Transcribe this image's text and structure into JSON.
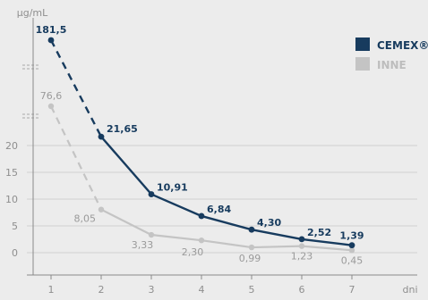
{
  "chart_data": {
    "type": "line",
    "ylabel": "μg/mL",
    "xlabel": "dni",
    "colors": {
      "cemex": "#173b5e",
      "inne": "#c4c4c4",
      "grid": "#d0d0d0",
      "axis": "#8a8a8a"
    },
    "x": [
      1,
      2,
      3,
      4,
      5,
      6,
      7
    ],
    "x_tick_labels": [
      "1",
      "2",
      "3",
      "4",
      "5",
      "6",
      "7"
    ],
    "y_ticks": [
      0,
      5,
      10,
      15,
      20
    ],
    "y_tick_labels": [
      "0",
      "5",
      "10",
      "15",
      "20"
    ],
    "ylim": [
      -3,
      22
    ],
    "axis_break": true,
    "grid": "horizontal",
    "legend": "top-right",
    "series": [
      {
        "name": "CEMEX®",
        "color": "#173b5e",
        "values": [
          181.5,
          21.65,
          10.91,
          6.84,
          4.3,
          2.52,
          1.39
        ],
        "data_labels": [
          "181,5",
          "21,65",
          "10,91",
          "6,84",
          "4,30",
          "2,52",
          "1,39"
        ],
        "dashed_first_segment": true
      },
      {
        "name": "INNE",
        "color": "#c4c4c4",
        "values": [
          76.6,
          8.05,
          3.33,
          2.3,
          0.99,
          1.23,
          0.45
        ],
        "data_labels": [
          "76,6",
          "8,05",
          "3,33",
          "2,30",
          "0,99",
          "1,23",
          "0,45"
        ],
        "dashed_first_segment": true
      }
    ]
  }
}
